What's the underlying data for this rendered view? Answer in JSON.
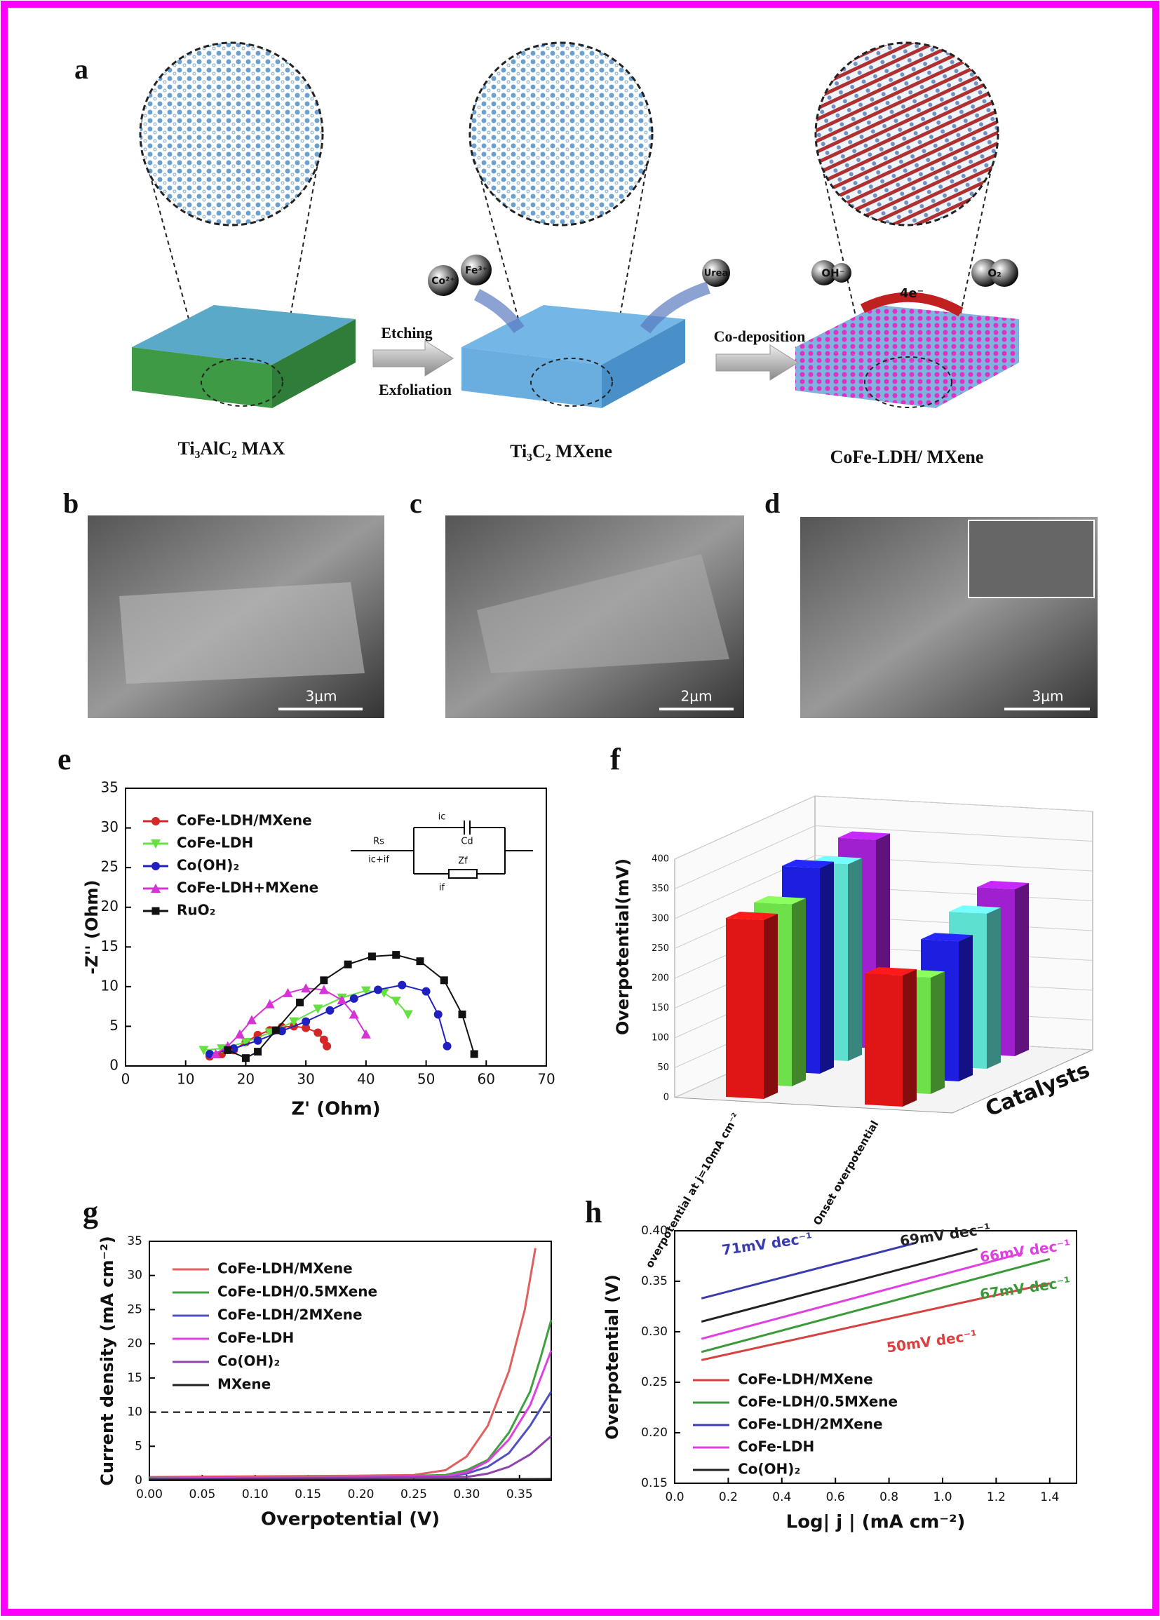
{
  "figure": {
    "panel_a": {
      "panel": "a",
      "arrow1": [
        "Etching",
        "Exfoliation"
      ],
      "arrow2": "Co-deposition",
      "materials": [
        "Ti₃AlC₂ MAX",
        "Ti₃C₂ MXene",
        "CoFe-LDH/ MXene"
      ],
      "ions": [
        "Co²⁺",
        "Fe³⁺",
        "Urea"
      ],
      "reaction": [
        "OH⁻",
        "4e⁻",
        "O₂"
      ]
    },
    "panel_b": {
      "panel": "b",
      "scale": "3μm"
    },
    "panel_c": {
      "panel": "c",
      "scale": "2μm"
    },
    "panel_d": {
      "panel": "d",
      "scale": "3μm"
    }
  },
  "chart_data": [
    {
      "type": "scatter",
      "panel": "e",
      "xlabel": "Z' (Ohm)",
      "ylabel": "-Z'' (Ohm)",
      "xlim": [
        0,
        70
      ],
      "xticks": [
        0,
        10,
        20,
        30,
        40,
        50,
        60,
        70
      ],
      "ylim": [
        0,
        35
      ],
      "yticks": [
        0,
        5,
        10,
        15,
        20,
        25,
        30,
        35
      ],
      "circuit": [
        "Rs",
        "Cd",
        "Zf",
        "ic",
        "if",
        "ic+if"
      ],
      "series": [
        {
          "name": "CoFe-LDH/MXene",
          "color": "#d62728",
          "marker": "circle",
          "x": [
            14,
            16,
            18,
            20,
            22,
            24,
            26,
            28,
            30,
            32,
            33,
            33.5
          ],
          "values": [
            1.2,
            1.5,
            2.0,
            3.0,
            3.9,
            4.5,
            4.9,
            5.0,
            4.8,
            4.2,
            3.3,
            2.5
          ]
        },
        {
          "name": "CoFe-LDH",
          "color": "#66e040",
          "marker": "triangle-down",
          "x": [
            13,
            16,
            20,
            24,
            28,
            32,
            36,
            40,
            43,
            45,
            47
          ],
          "values": [
            2,
            2.2,
            3.0,
            4.2,
            5.6,
            7.2,
            8.6,
            9.5,
            9.2,
            8.2,
            6.5
          ]
        },
        {
          "name": "Co(OH)₂",
          "color": "#2020c0",
          "marker": "circle",
          "x": [
            14,
            18,
            22,
            26,
            30,
            34,
            38,
            42,
            46,
            50,
            52,
            53.5
          ],
          "values": [
            1.5,
            2.2,
            3.2,
            4.4,
            5.6,
            7.0,
            8.5,
            9.6,
            10.2,
            9.4,
            6.5,
            2.5
          ]
        },
        {
          "name": "CoFe-LDH+MXene",
          "color": "#d633d6",
          "marker": "triangle-up",
          "x": [
            15,
            17,
            19,
            21,
            24,
            27,
            30,
            33,
            36,
            38,
            40
          ],
          "values": [
            1.5,
            2.5,
            4.0,
            5.8,
            7.8,
            9.2,
            9.8,
            9.6,
            8.3,
            6.5,
            4
          ]
        },
        {
          "name": "RuO₂",
          "color": "#111111",
          "marker": "square",
          "x": [
            17,
            20,
            22,
            25,
            29,
            33,
            37,
            41,
            45,
            49,
            53,
            56,
            58
          ],
          "values": [
            2,
            1,
            1.8,
            4.5,
            8,
            10.8,
            12.8,
            13.8,
            14,
            13.2,
            10.8,
            6.5,
            1.5
          ]
        }
      ]
    },
    {
      "type": "bar3d",
      "panel": "f",
      "ylabel": "Overpotential(mV)",
      "zlabel": "Catalysts",
      "categories": [
        "overpotential at j=10mA cm⁻²",
        "Onset overpotential"
      ],
      "ylim": [
        0,
        400
      ],
      "yticks": [
        0,
        50,
        100,
        150,
        200,
        250,
        300,
        350,
        400
      ],
      "series": [
        {
          "color": "#e01515",
          "values": [
            300,
            220
          ]
        },
        {
          "color": "#6ee04a",
          "values": [
            305,
            195
          ]
        },
        {
          "color": "#1e1ee0",
          "values": [
            345,
            235
          ]
        },
        {
          "color": "#5ee0d0",
          "values": [
            330,
            260
          ]
        },
        {
          "color": "#a020d0",
          "values": [
            350,
            280
          ]
        }
      ]
    },
    {
      "type": "line",
      "panel": "g",
      "xlabel": "Overpotential (V)",
      "ylabel": "Current density (mA cm⁻²)",
      "xlim": [
        0,
        0.38
      ],
      "xticks": [
        {
          "value": 0,
          "label": "0.00"
        },
        0.05,
        {
          "value": 0.1,
          "label": "0.10"
        },
        0.15,
        {
          "value": 0.2,
          "label": "0.20"
        },
        0.25,
        {
          "value": 0.3,
          "label": "0.30"
        },
        0.35
      ],
      "ylim": [
        0,
        35
      ],
      "yticks": [
        0,
        5,
        10,
        15,
        20,
        25,
        30,
        35
      ],
      "hline": 10,
      "series": [
        {
          "name": "CoFe-LDH/MXene",
          "color": "#e06060",
          "x": [
            0,
            0.1,
            0.2,
            0.25,
            0.28,
            0.3,
            0.32,
            0.34,
            0.355,
            0.365
          ],
          "values": [
            0.5,
            0.6,
            0.7,
            0.8,
            1.5,
            3.5,
            8,
            16,
            25,
            34
          ]
        },
        {
          "name": "CoFe-LDH/0.5MXene",
          "color": "#3fa040",
          "x": [
            0,
            0.2,
            0.28,
            0.3,
            0.32,
            0.34,
            0.36,
            0.37,
            0.38
          ],
          "values": [
            0.4,
            0.5,
            0.8,
            1.5,
            3,
            7,
            13,
            18,
            23.5
          ]
        },
        {
          "name": "CoFe-LDH/2MXene",
          "color": "#5050c0",
          "x": [
            0,
            0.28,
            0.3,
            0.32,
            0.34,
            0.36,
            0.38
          ],
          "values": [
            0.3,
            0.5,
            1,
            2,
            4,
            8,
            13
          ]
        },
        {
          "name": "CoFe-LDH",
          "color": "#e040e0",
          "x": [
            0,
            0.28,
            0.3,
            0.32,
            0.34,
            0.36,
            0.37,
            0.38
          ],
          "values": [
            0.3,
            0.6,
            1.2,
            2.8,
            6,
            11,
            15,
            19
          ]
        },
        {
          "name": "Co(OH)₂",
          "color": "#8e44ad",
          "x": [
            0,
            0.3,
            0.32,
            0.34,
            0.36,
            0.38
          ],
          "values": [
            0.2,
            0.5,
            1,
            2,
            3.8,
            6.5
          ]
        },
        {
          "name": "MXene",
          "color": "#222222",
          "x": [
            0,
            0.2,
            0.38
          ],
          "values": [
            0.1,
            0.1,
            0.2
          ]
        }
      ]
    },
    {
      "type": "line",
      "panel": "h",
      "xlabel": "Log| j | (mA cm⁻²)",
      "ylabel": "Overpotential (V)",
      "xlim": [
        0,
        1.5
      ],
      "xticks": [
        {
          "value": 0,
          "label": "0.0"
        },
        0.2,
        0.4,
        0.6,
        0.8,
        {
          "value": 1,
          "label": "1.0"
        },
        1.2,
        1.4
      ],
      "ylim": [
        0.15,
        0.4
      ],
      "yticks": [
        0.15,
        {
          "value": 0.2,
          "label": "0.20"
        },
        0.25,
        {
          "value": 0.3,
          "label": "0.30"
        },
        0.35,
        {
          "value": 0.4,
          "label": "0.40"
        }
      ],
      "series": [
        {
          "name": "CoFe-LDH/MXene",
          "color": "#d94040",
          "label": "50mV dec⁻¹",
          "x": [
            0.1,
            1.4
          ],
          "values": [
            0.272,
            0.348
          ]
        },
        {
          "name": "CoFe-LDH/0.5MXene",
          "color": "#3a9a3a",
          "label": "67mV dec⁻¹",
          "x": [
            0.1,
            1.4
          ],
          "values": [
            0.28,
            0.372
          ]
        },
        {
          "name": "CoFe-LDH/2MXene",
          "color": "#3b3bb0",
          "label": "71mV dec⁻¹",
          "x": [
            0.1,
            0.9
          ],
          "values": [
            0.333,
            0.388
          ]
        },
        {
          "name": "CoFe-LDH",
          "color": "#e040e0",
          "label": "66mV dec⁻¹",
          "x": [
            0.1,
            1.3
          ],
          "values": [
            0.293,
            0.378
          ]
        },
        {
          "name": "Co(OH)₂",
          "color": "#222222",
          "label": "69mV dec⁻¹",
          "x": [
            0.1,
            1.13
          ],
          "values": [
            0.31,
            0.382
          ]
        }
      ]
    }
  ]
}
